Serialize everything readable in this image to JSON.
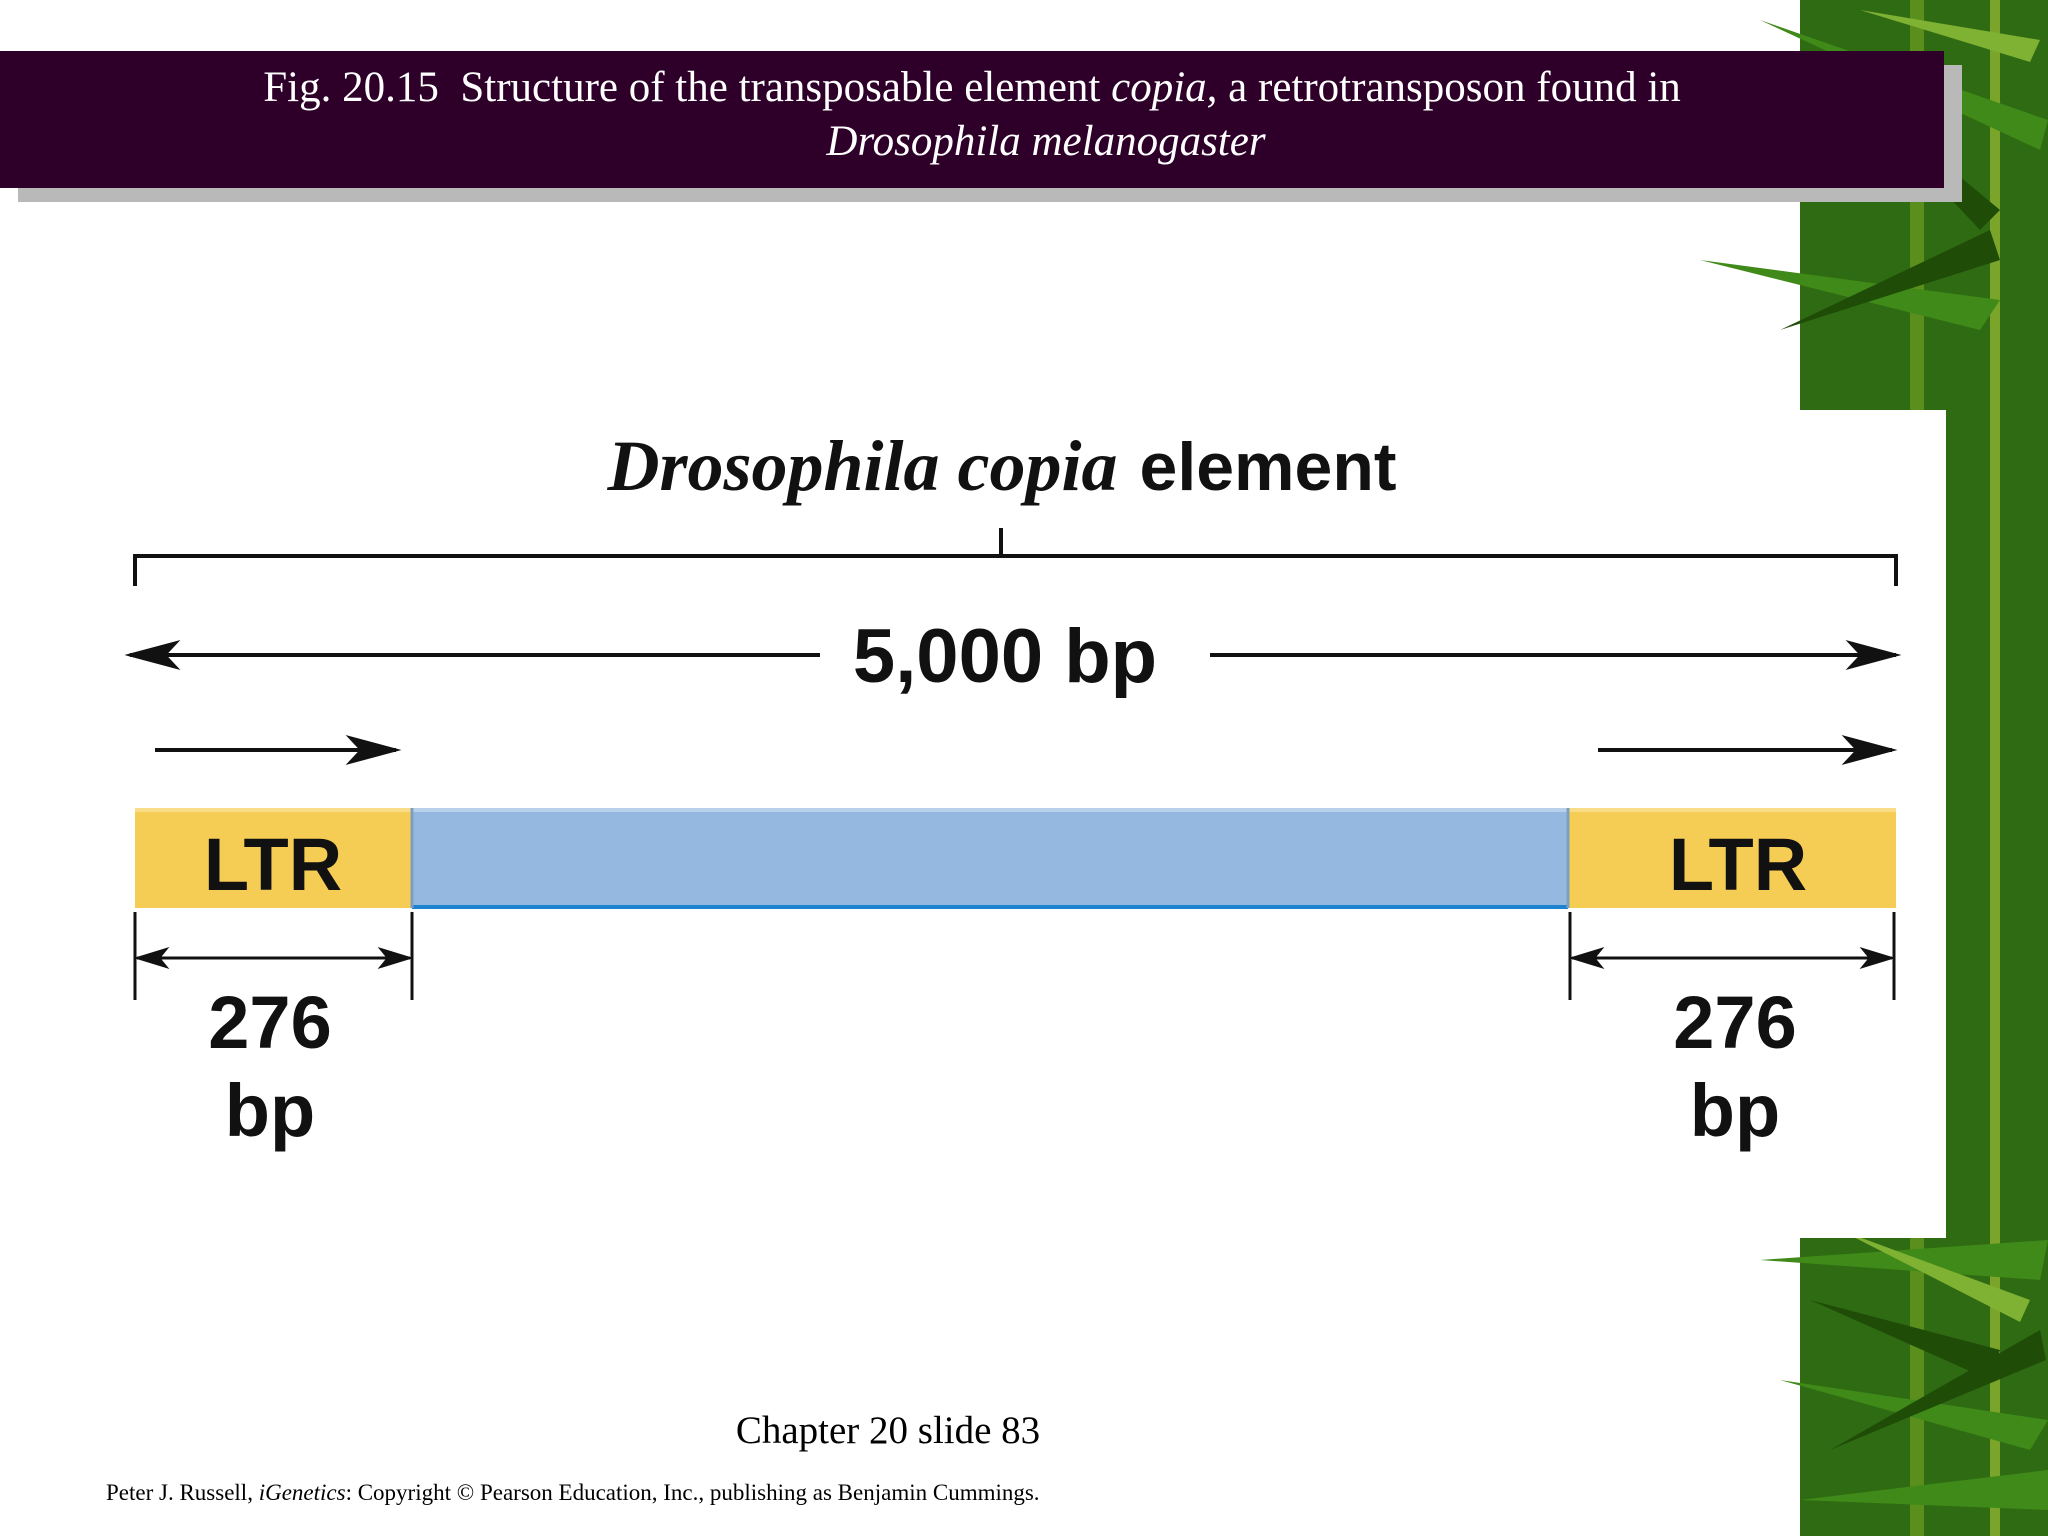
{
  "header": {
    "fig_label": "Fig. 20.15",
    "title_part1": "Structure of the transposable element",
    "title_italic": "copia,",
    "title_part2": "a retrotransposon found in",
    "title_species": "Drosophila melanogaster"
  },
  "diagram": {
    "title_italic": "Drosophila copia",
    "title_bold": "element",
    "total_length_label": "5,000 bp",
    "left_ltr": {
      "label": "LTR",
      "size_number": "276",
      "size_unit": "bp"
    },
    "right_ltr": {
      "label": "LTR",
      "size_number": "276",
      "size_unit": "bp"
    },
    "colors": {
      "ltr": "#f5cd55",
      "internal": "#95b8e0",
      "internal_edge": "#1d82cf"
    }
  },
  "footer": {
    "caption": "Chapter 20 slide 83",
    "copyright_author": "Peter J. Russell,",
    "copyright_book": "iGenetics",
    "copyright_rest": ": Copyright © Pearson Education, Inc., publishing as Benjamin Cummings."
  },
  "theme": {
    "title_bar": "#2e0029",
    "bamboo": "#2f6b12"
  }
}
